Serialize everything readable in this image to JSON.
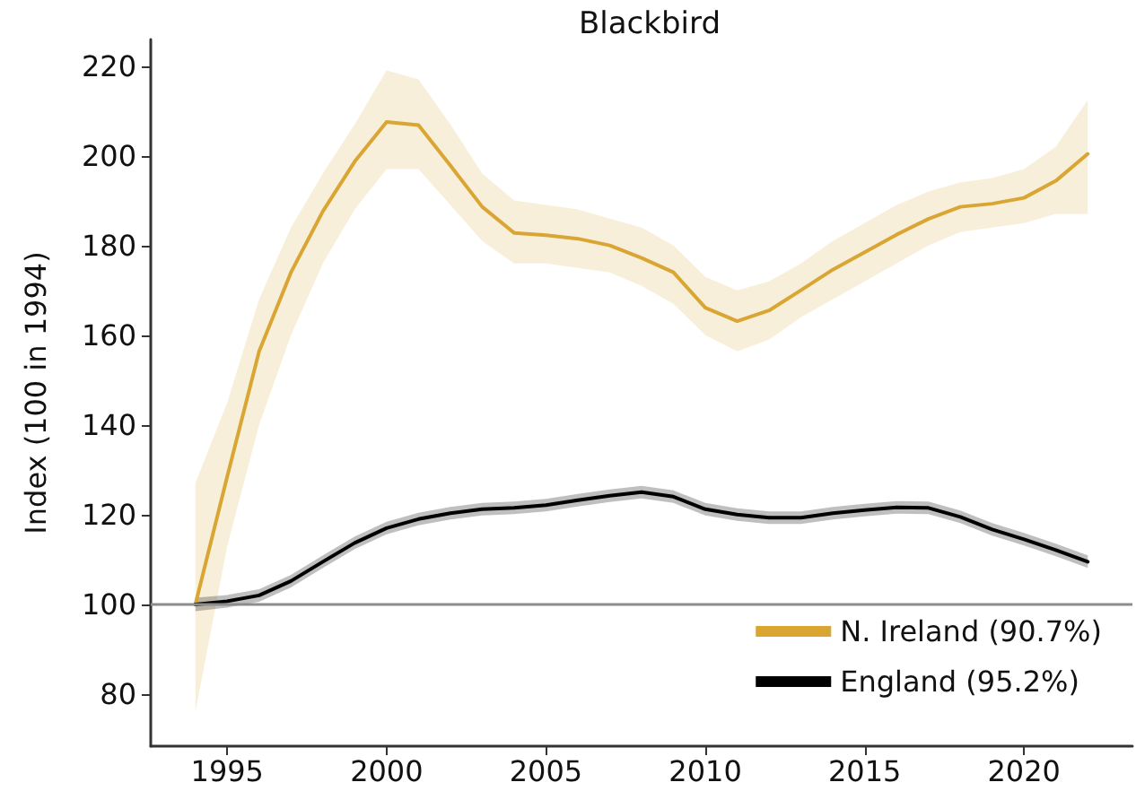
{
  "chart_data": {
    "type": "line",
    "title": "Blackbird",
    "ylabel": "Index (100 in 1994)",
    "x": [
      1994,
      1995,
      1996,
      1997,
      1998,
      1999,
      2000,
      2001,
      2002,
      2003,
      2004,
      2005,
      2006,
      2007,
      2008,
      2009,
      2010,
      2011,
      2012,
      2013,
      2014,
      2015,
      2016,
      2017,
      2018,
      2019,
      2020,
      2021,
      2022
    ],
    "series": [
      {
        "name": "N. Ireland (90.7%)",
        "color": "#d9a533",
        "values": [
          100,
          128.5,
          156.4,
          174,
          187.6,
          198.7,
          207.5,
          206.8,
          197.8,
          188.6,
          182.8,
          182.3,
          181.5,
          180,
          177.2,
          174,
          166.1,
          163.1,
          165.5,
          170,
          174.6,
          178.5,
          182.4,
          185.9,
          188.6,
          189.3,
          190.6,
          194.4,
          200.4
        ],
        "lower": [
          76,
          113,
          140,
          160,
          176,
          188,
          197,
          197,
          189,
          181,
          176,
          176,
          175,
          174,
          171,
          167,
          160,
          156.4,
          159,
          164,
          168,
          172,
          176,
          180,
          183,
          184,
          185,
          187,
          187
        ],
        "upper": [
          127,
          145,
          168,
          184,
          196,
          207,
          219,
          217,
          207,
          196,
          190,
          189,
          188,
          186,
          184,
          180,
          173,
          170,
          172,
          176,
          181,
          185,
          189,
          192,
          194,
          195,
          197,
          202,
          212.4
        ]
      },
      {
        "name": "England (95.2%)",
        "color": "#000000",
        "values": [
          100,
          100.7,
          102,
          105.2,
          109.5,
          113.7,
          117,
          119,
          120.3,
          121.2,
          121.5,
          122.1,
          123.2,
          124.2,
          125,
          124,
          121.2,
          120,
          119.3,
          119.3,
          120.3,
          121,
          121.6,
          121.5,
          119.5,
          116.7,
          114.5,
          112.1,
          109.5
        ],
        "lower": [
          98.5,
          99.3,
          100.6,
          103.8,
          108.1,
          112.3,
          115.6,
          117.6,
          118.9,
          119.8,
          120.1,
          120.7,
          121.8,
          122.8,
          123.6,
          122.6,
          119.8,
          118.6,
          117.9,
          117.9,
          118.9,
          119.6,
          120.2,
          120.1,
          118.1,
          115.3,
          113.1,
          110.7,
          108.1
        ],
        "upper": [
          101.5,
          102.1,
          103.4,
          106.6,
          110.9,
          115.1,
          118.4,
          120.4,
          121.7,
          122.6,
          122.9,
          123.5,
          124.6,
          125.6,
          126.4,
          125.4,
          122.6,
          121.4,
          120.7,
          120.7,
          121.7,
          122.4,
          123,
          122.9,
          120.9,
          118.1,
          115.9,
          113.5,
          110.9
        ]
      }
    ],
    "xlim": [
      1992.6,
      2023.4
    ],
    "xticks": [
      1995,
      2000,
      2005,
      2010,
      2015,
      2020
    ],
    "ylim": [
      68.4,
      225.9
    ],
    "yticks": [
      80,
      100,
      120,
      140,
      160,
      180,
      200,
      220
    ],
    "ref_lines": [
      {
        "axis": "y",
        "value": 100,
        "color": "#8c8c8c"
      }
    ],
    "legend": "bottom right",
    "grid": false,
    "marker": "none",
    "line_style": "solid"
  }
}
